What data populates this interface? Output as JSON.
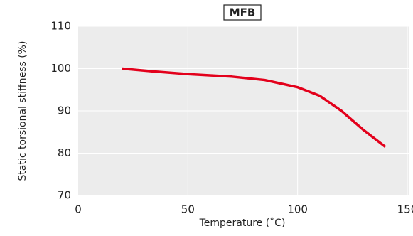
{
  "chart_data": {
    "type": "line",
    "title": "MFB",
    "x_label": "Temperature (˚C)",
    "y_label": "Static torsional stiffness (%)",
    "x": [
      20,
      35,
      50,
      70,
      85,
      100,
      110,
      120,
      130,
      140
    ],
    "series": [
      {
        "name": "MFB",
        "color": "#e3001b",
        "values": [
          100,
          99.3,
          98.7,
          98.1,
          97.3,
          95.6,
          93.6,
          90.0,
          85.5,
          81.5
        ]
      }
    ],
    "xlim": [
      0,
      150
    ],
    "xticks": [
      0,
      50,
      100,
      150
    ],
    "ylim": [
      70,
      110
    ],
    "yticks": [
      70,
      80,
      90,
      100,
      110
    ],
    "grid": true
  }
}
